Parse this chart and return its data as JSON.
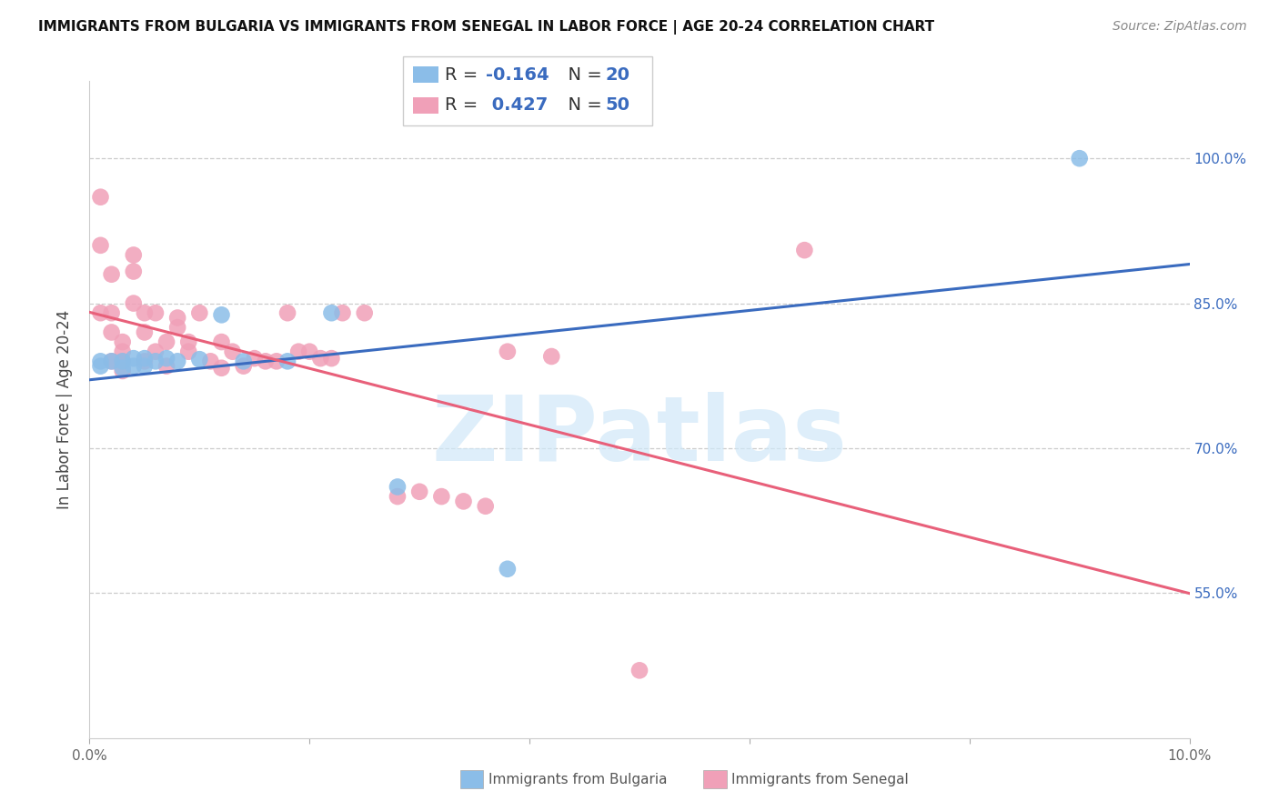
{
  "title": "IMMIGRANTS FROM BULGARIA VS IMMIGRANTS FROM SENEGAL IN LABOR FORCE | AGE 20-24 CORRELATION CHART",
  "source": "Source: ZipAtlas.com",
  "ylabel": "In Labor Force | Age 20-24",
  "xlim": [
    0.0,
    0.1
  ],
  "ylim": [
    0.4,
    1.08
  ],
  "yticks": [
    0.55,
    0.7,
    0.85,
    1.0
  ],
  "ytick_labels": [
    "55.0%",
    "70.0%",
    "85.0%",
    "100.0%"
  ],
  "xticks": [
    0.0,
    0.02,
    0.04,
    0.06,
    0.08,
    0.1
  ],
  "xtick_labels": [
    "0.0%",
    "",
    "",
    "",
    "",
    "10.0%"
  ],
  "bulgaria_color": "#8bbde8",
  "senegal_color": "#f0a0b8",
  "bulgaria_line_color": "#3a6bbf",
  "senegal_line_color": "#e8607a",
  "watermark_color": "#d0e8f8",
  "watermark_text": "ZIPatlas",
  "legend_text_color": "#333333",
  "legend_num_color": "#3a6bbf",
  "bulgaria_R": -0.164,
  "bulgaria_N": 20,
  "senegal_R": 0.427,
  "senegal_N": 50,
  "bulgaria_scatter_x": [
    0.001,
    0.001,
    0.002,
    0.003,
    0.003,
    0.004,
    0.004,
    0.005,
    0.005,
    0.006,
    0.007,
    0.008,
    0.01,
    0.012,
    0.014,
    0.018,
    0.022,
    0.028,
    0.038,
    0.09
  ],
  "bulgaria_scatter_y": [
    0.79,
    0.785,
    0.79,
    0.79,
    0.783,
    0.793,
    0.785,
    0.793,
    0.785,
    0.79,
    0.793,
    0.79,
    0.792,
    0.838,
    0.79,
    0.79,
    0.84,
    0.66,
    0.575,
    1.0
  ],
  "senegal_scatter_x": [
    0.001,
    0.001,
    0.001,
    0.002,
    0.002,
    0.002,
    0.002,
    0.003,
    0.003,
    0.003,
    0.003,
    0.004,
    0.004,
    0.004,
    0.005,
    0.005,
    0.005,
    0.006,
    0.006,
    0.007,
    0.007,
    0.008,
    0.008,
    0.009,
    0.009,
    0.01,
    0.011,
    0.012,
    0.012,
    0.013,
    0.014,
    0.015,
    0.016,
    0.017,
    0.018,
    0.019,
    0.02,
    0.021,
    0.022,
    0.023,
    0.025,
    0.028,
    0.03,
    0.032,
    0.034,
    0.036,
    0.038,
    0.042,
    0.05,
    0.065
  ],
  "senegal_scatter_y": [
    0.96,
    0.91,
    0.84,
    0.88,
    0.84,
    0.82,
    0.79,
    0.81,
    0.8,
    0.79,
    0.78,
    0.9,
    0.883,
    0.85,
    0.84,
    0.82,
    0.79,
    0.84,
    0.8,
    0.81,
    0.785,
    0.835,
    0.825,
    0.81,
    0.8,
    0.84,
    0.79,
    0.81,
    0.783,
    0.8,
    0.785,
    0.793,
    0.79,
    0.79,
    0.84,
    0.8,
    0.8,
    0.793,
    0.793,
    0.84,
    0.84,
    0.65,
    0.655,
    0.65,
    0.645,
    0.64,
    0.8,
    0.795,
    0.47,
    0.905
  ]
}
